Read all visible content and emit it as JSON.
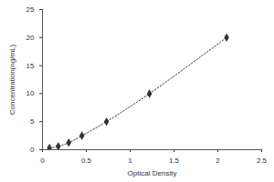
{
  "chart_data": {
    "type": "scatter",
    "x_label": "Optical Density",
    "y_label": "Concentration(ng/mL)",
    "x": [
      0.08,
      0.18,
      0.3,
      0.45,
      0.73,
      1.22,
      2.1
    ],
    "values": [
      0.3,
      0.6,
      1.25,
      2.5,
      5,
      10,
      20
    ],
    "color": "#333333",
    "marker": "diamond",
    "line_style": "dotted",
    "xlim": [
      0,
      2.5
    ],
    "xticks": [
      0,
      0.5,
      1,
      1.5,
      2,
      2.5
    ],
    "ylim": [
      0,
      25
    ],
    "yticks": [
      0,
      5,
      10,
      15,
      20,
      25
    ],
    "grid": false
  }
}
